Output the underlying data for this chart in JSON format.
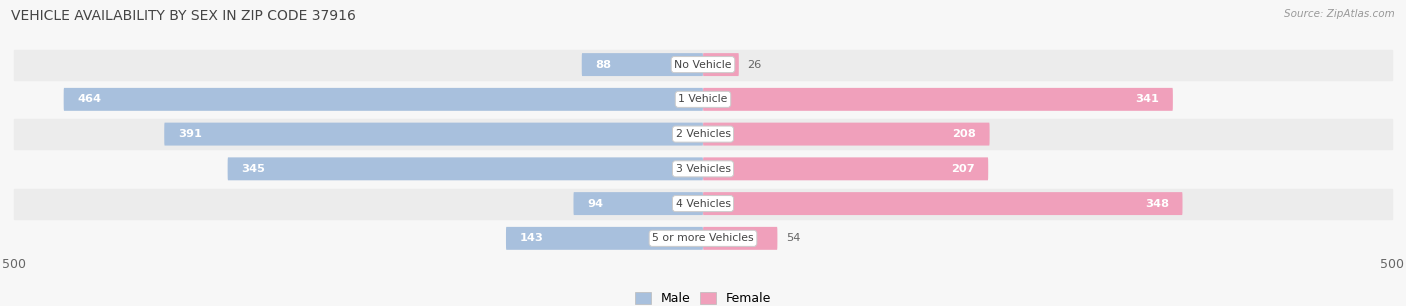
{
  "title": "VEHICLE AVAILABILITY BY SEX IN ZIP CODE 37916",
  "source": "Source: ZipAtlas.com",
  "categories": [
    "No Vehicle",
    "1 Vehicle",
    "2 Vehicles",
    "3 Vehicles",
    "4 Vehicles",
    "5 or more Vehicles"
  ],
  "male_values": [
    88,
    464,
    391,
    345,
    94,
    143
  ],
  "female_values": [
    26,
    341,
    208,
    207,
    348,
    54
  ],
  "male_color": "#a8c0dd",
  "female_color": "#f0a0bb",
  "male_label": "Male",
  "female_label": "Female",
  "axis_limit": 500,
  "fig_bg": "#f7f7f7",
  "row_colors": [
    "#ececec",
    "#f7f7f7"
  ],
  "label_color_inside": "#ffffff",
  "label_color_outside": "#666666",
  "title_color": "#444444",
  "center_label_color": "#444444",
  "inside_threshold": 55
}
